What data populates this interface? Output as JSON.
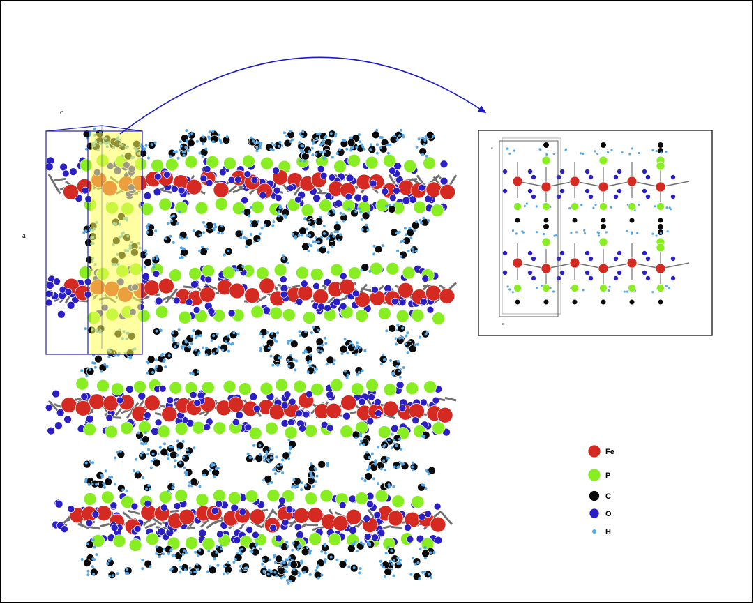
{
  "main_view": {
    "axis_labels": {
      "c": "c",
      "a": "a"
    }
  },
  "inset_view": {
    "axis_labels": {
      "a": "a",
      "c": "c"
    }
  },
  "legend": {
    "items": [
      {
        "label": "Fe",
        "color": "#d42a22"
      },
      {
        "label": "P",
        "color": "#88ee22"
      },
      {
        "label": "C",
        "color": "#0a0a0a"
      },
      {
        "label": "O",
        "color": "#2a1fc4"
      },
      {
        "label": "H",
        "color": "#55a8e8"
      }
    ]
  },
  "colors": {
    "fe": "#d42a22",
    "p": "#88ee22",
    "c": "#0a0a0a",
    "o": "#2a1fc4",
    "h": "#55a8e8",
    "bond": "#707070",
    "cell": "#2222aa",
    "highlight": "#ffff55",
    "arrow": "#1a1acc"
  }
}
